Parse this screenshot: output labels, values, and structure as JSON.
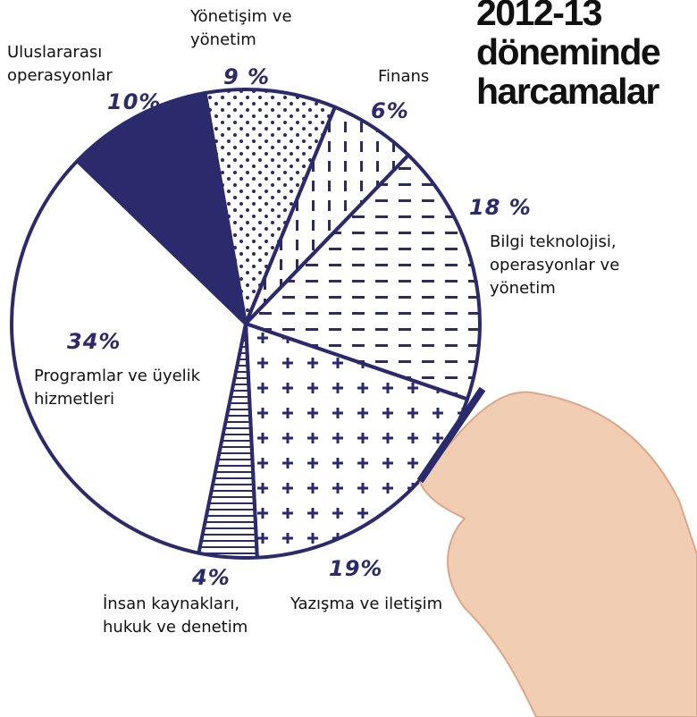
{
  "chart_data": {
    "type": "pie",
    "title": "2012-13 döneminde harcamalar",
    "categories": [
      "Yönetişim ve yönetim",
      "Finans",
      "Bilgi teknolojisi, operasyonlar ve yönetim",
      "Yazışma ve iletişim",
      "İnsan kaynakları, hukuk ve denetim",
      "Programlar ve üyelik hizmetleri",
      "Uluslararası operasyonlar"
    ],
    "values": [
      9,
      6,
      18,
      19,
      4,
      34,
      10
    ],
    "value_labels": [
      "9 %",
      "6%",
      "18 %",
      "19%",
      "4%",
      "34%",
      "10%"
    ],
    "color": "#2b2a6c"
  }
}
